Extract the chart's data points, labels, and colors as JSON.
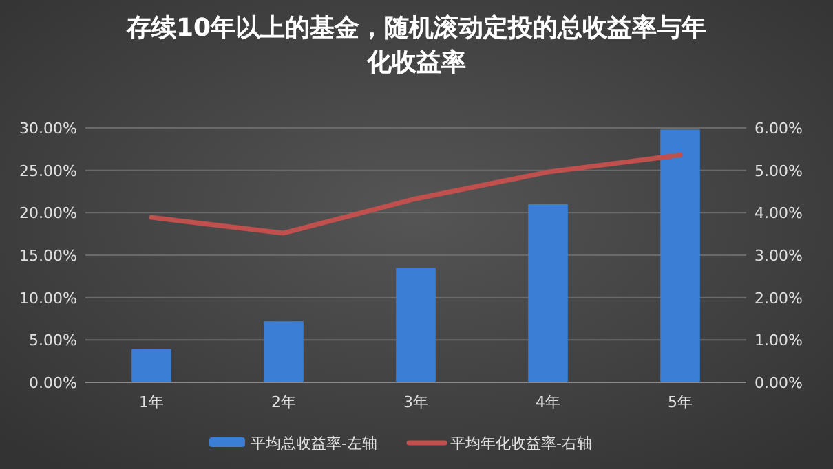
{
  "chart_data": {
    "type": "bar",
    "title": "存续10年以上的基金，随机滚动定投的总收益率与年化收益率",
    "categories": [
      "1年",
      "2年",
      "3年",
      "4年",
      "5年"
    ],
    "series": [
      {
        "name": "平均总收益率-左轴",
        "color": "#3a7fd5",
        "values": [
          3.9,
          7.2,
          13.5,
          21.0,
          29.8
        ]
      },
      {
        "name": "平均年化收益率-右轴",
        "type": "line",
        "axis": "y2",
        "color": "#c0504d",
        "values": [
          3.89,
          3.52,
          4.33,
          4.96,
          5.36
        ]
      }
    ],
    "ylim": [
      0,
      30
    ],
    "yticks": [
      {
        "value": 0,
        "label": "0.00%"
      },
      {
        "value": 5,
        "label": "5.00%"
      },
      {
        "value": 10,
        "label": "10.00%"
      },
      {
        "value": 15,
        "label": "15.00%"
      },
      {
        "value": 20,
        "label": "20.00%"
      },
      {
        "value": 25,
        "label": "25.00%"
      },
      {
        "value": 30,
        "label": "30.00%"
      }
    ],
    "y2lim": [
      0,
      6
    ],
    "y2ticks": [
      {
        "value": 0,
        "label": "0.00%"
      },
      {
        "value": 1,
        "label": "1.00%"
      },
      {
        "value": 2,
        "label": "2.00%"
      },
      {
        "value": 3,
        "label": "3.00%"
      },
      {
        "value": 4,
        "label": "4.00%"
      },
      {
        "value": 5,
        "label": "5.00%"
      },
      {
        "value": 6,
        "label": "6.00%"
      }
    ],
    "grid": "y",
    "legend": "bottom",
    "marker": "none"
  }
}
